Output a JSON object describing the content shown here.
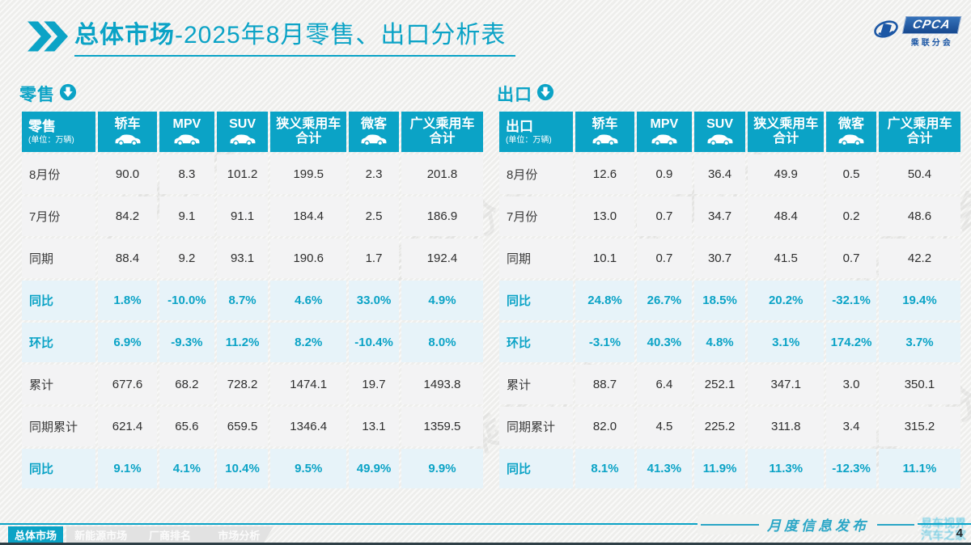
{
  "colors": {
    "accent": "#0ba3c6",
    "percent_row_bg": "#e7f3f9",
    "cell_bg": "#f3f3f4",
    "logo_blue": "#1c57a5"
  },
  "title": {
    "strong": "总体市场",
    "rest": "-2025年8月零售、出口分析表"
  },
  "logo": {
    "cpca": "CPCA",
    "sub": "乘联分会"
  },
  "tables": [
    {
      "id": "retail",
      "section_label": "零售",
      "corner": {
        "label": "零售",
        "unit": "(单位：万辆)"
      },
      "columns": [
        {
          "label": "轿车",
          "sub": "",
          "icon": "sedan-icon"
        },
        {
          "label": "MPV",
          "sub": "",
          "icon": "mpv-icon"
        },
        {
          "label": "SUV",
          "sub": "",
          "icon": "suv-icon"
        },
        {
          "label": "狭义乘用车",
          "sub": "合计",
          "icon": null
        },
        {
          "label": "微客",
          "sub": "",
          "icon": "minivan-icon"
        },
        {
          "label": "广义乘用车",
          "sub": "合计",
          "icon": null
        }
      ],
      "rows": [
        {
          "label": "8月份",
          "type": "normal",
          "values": [
            "90.0",
            "8.3",
            "101.2",
            "199.5",
            "2.3",
            "201.8"
          ]
        },
        {
          "label": "7月份",
          "type": "normal",
          "values": [
            "84.2",
            "9.1",
            "91.1",
            "184.4",
            "2.5",
            "186.9"
          ]
        },
        {
          "label": "同期",
          "type": "normal",
          "values": [
            "88.4",
            "9.2",
            "93.1",
            "190.6",
            "1.7",
            "192.4"
          ]
        },
        {
          "label": "同比",
          "type": "percent",
          "values": [
            "1.8%",
            "-10.0%",
            "8.7%",
            "4.6%",
            "33.0%",
            "4.9%"
          ]
        },
        {
          "label": "环比",
          "type": "percent",
          "values": [
            "6.9%",
            "-9.3%",
            "11.2%",
            "8.2%",
            "-10.4%",
            "8.0%"
          ]
        },
        {
          "label": "累计",
          "type": "normal",
          "values": [
            "677.6",
            "68.2",
            "728.2",
            "1474.1",
            "19.7",
            "1493.8"
          ]
        },
        {
          "label": "同期累计",
          "type": "normal",
          "values": [
            "621.4",
            "65.6",
            "659.5",
            "1346.4",
            "13.1",
            "1359.5"
          ]
        },
        {
          "label": "同比",
          "type": "percent",
          "values": [
            "9.1%",
            "4.1%",
            "10.4%",
            "9.5%",
            "49.9%",
            "9.9%"
          ]
        }
      ]
    },
    {
      "id": "export",
      "section_label": "出口",
      "corner": {
        "label": "出口",
        "unit": "(单位：万辆)"
      },
      "columns": [
        {
          "label": "轿车",
          "sub": "",
          "icon": "sedan-icon"
        },
        {
          "label": "MPV",
          "sub": "",
          "icon": "mpv-icon"
        },
        {
          "label": "SUV",
          "sub": "",
          "icon": "suv-icon"
        },
        {
          "label": "狭义乘用车",
          "sub": "合计",
          "icon": null
        },
        {
          "label": "微客",
          "sub": "",
          "icon": "minivan-icon"
        },
        {
          "label": "广义乘用车",
          "sub": "合计",
          "icon": null
        }
      ],
      "rows": [
        {
          "label": "8月份",
          "type": "normal",
          "values": [
            "12.6",
            "0.9",
            "36.4",
            "49.9",
            "0.5",
            "50.4"
          ]
        },
        {
          "label": "7月份",
          "type": "normal",
          "values": [
            "13.0",
            "0.7",
            "34.7",
            "48.4",
            "0.2",
            "48.6"
          ]
        },
        {
          "label": "同期",
          "type": "normal",
          "values": [
            "10.1",
            "0.7",
            "30.7",
            "41.5",
            "0.7",
            "42.2"
          ]
        },
        {
          "label": "同比",
          "type": "percent",
          "values": [
            "24.8%",
            "26.7%",
            "18.5%",
            "20.2%",
            "-32.1%",
            "19.4%"
          ]
        },
        {
          "label": "环比",
          "type": "percent",
          "values": [
            "-3.1%",
            "40.3%",
            "4.8%",
            "3.1%",
            "174.2%",
            "3.7%"
          ]
        },
        {
          "label": "累计",
          "type": "normal",
          "values": [
            "88.7",
            "6.4",
            "252.1",
            "347.1",
            "3.0",
            "350.1"
          ]
        },
        {
          "label": "同期累计",
          "type": "normal",
          "values": [
            "82.0",
            "4.5",
            "225.2",
            "311.8",
            "3.4",
            "315.2"
          ]
        },
        {
          "label": "同比",
          "type": "percent",
          "values": [
            "8.1%",
            "41.3%",
            "11.9%",
            "11.3%",
            "-12.3%",
            "11.1%"
          ]
        }
      ]
    }
  ],
  "footer": {
    "tabs": [
      {
        "label": "总体市场",
        "active": true
      },
      {
        "label": "新能源市场",
        "active": false
      },
      {
        "label": "厂商排名",
        "active": false
      },
      {
        "label": "市场分析",
        "active": false
      }
    ],
    "note": "月度信息发布",
    "page": "4"
  },
  "watermarks": {
    "table_mark": "乘联分会",
    "corner_lines": [
      "易车视界",
      "汽车之家"
    ]
  }
}
